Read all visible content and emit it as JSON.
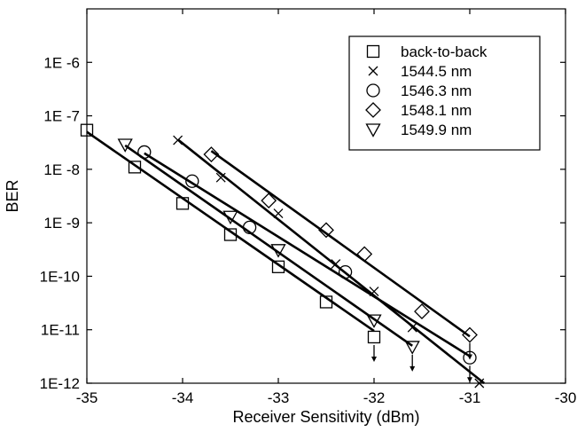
{
  "chart_data": {
    "type": "scatter",
    "title": "",
    "xlabel": "Receiver Sensitivity (dBm)",
    "ylabel": "BER",
    "xlim": [
      -35,
      -30
    ],
    "ylim_log10": [
      -12,
      -5
    ],
    "y_scale": "log",
    "grid": false,
    "legend_position": "top-right",
    "x_ticks": [
      {
        "value": -35,
        "label": "-35"
      },
      {
        "value": -34,
        "label": "-34"
      },
      {
        "value": -33,
        "label": "-33"
      },
      {
        "value": -32,
        "label": "-32"
      },
      {
        "value": -31,
        "label": "-31"
      },
      {
        "value": -30,
        "label": "-30"
      }
    ],
    "y_ticks": [
      {
        "value": 1e-12,
        "label": "1E-12"
      },
      {
        "value": 1e-11,
        "label": "1E-11"
      },
      {
        "value": 1e-10,
        "label": "1E-10"
      },
      {
        "value": 1e-09,
        "label": "1E -9"
      },
      {
        "value": 1e-08,
        "label": "1E -8"
      },
      {
        "value": 1e-07,
        "label": "1E -7"
      },
      {
        "value": 1e-06,
        "label": "1E -6"
      }
    ],
    "series": [
      {
        "name": "back-to-back",
        "marker": "square",
        "points": [
          [
            -35.0,
            5.4e-08
          ],
          [
            -34.5,
            1.1e-08
          ],
          [
            -34.0,
            2.3e-09
          ],
          [
            -33.5,
            6e-10
          ],
          [
            -33.0,
            1.5e-10
          ],
          [
            -32.5,
            3.3e-11
          ],
          [
            -32.0,
            7.3e-12
          ]
        ],
        "fit": [
          [
            -35.0,
            5e-08
          ],
          [
            -32.0,
            9.5e-12
          ]
        ],
        "error_free_arrow_at_x": -32.0
      },
      {
        "name": "1544.5 nm",
        "marker": "x",
        "points": [
          [
            -34.05,
            3.5e-08
          ],
          [
            -33.6,
            7e-09
          ],
          [
            -33.0,
            1.5e-09
          ],
          [
            -32.4,
            1.7e-10
          ],
          [
            -32.0,
            5.2e-11
          ],
          [
            -31.6,
            1.1e-11
          ],
          [
            -30.9,
            1e-12
          ]
        ],
        "fit": [
          [
            -34.05,
            3.6e-08
          ],
          [
            -30.85,
            1e-12
          ]
        ],
        "error_free_arrow_at_x": null
      },
      {
        "name": "1546.3 nm",
        "marker": "circle",
        "points": [
          [
            -34.4,
            2.1e-08
          ],
          [
            -33.9,
            6e-09
          ],
          [
            -33.3,
            8.2e-10
          ],
          [
            -32.3,
            1.2e-10
          ],
          [
            -31.0,
            3e-12
          ]
        ],
        "fit": [
          [
            -34.4,
            2e-08
          ],
          [
            -31.0,
            3.2e-12
          ]
        ],
        "error_free_arrow_at_x": -31.0
      },
      {
        "name": "1548.1 nm",
        "marker": "diamond",
        "points": [
          [
            -33.7,
            1.9e-08
          ],
          [
            -33.1,
            2.6e-09
          ],
          [
            -32.5,
            7.3e-10
          ],
          [
            -32.1,
            2.6e-10
          ],
          [
            -31.5,
            2.2e-11
          ],
          [
            -31.0,
            8e-12
          ]
        ],
        "fit": [
          [
            -33.7,
            2.2e-08
          ],
          [
            -31.0,
            7.5e-12
          ]
        ],
        "error_free_arrow_at_x": -31.0
      },
      {
        "name": "1549.9 nm",
        "marker": "triangle-down",
        "points": [
          [
            -34.6,
            2.9e-08
          ],
          [
            -33.5,
            1.3e-09
          ],
          [
            -33.0,
            3.1e-10
          ],
          [
            -32.0,
            1.5e-11
          ],
          [
            -31.6,
            4.8e-12
          ]
        ],
        "fit": [
          [
            -34.6,
            2.8e-08
          ],
          [
            -31.6,
            5e-12
          ]
        ],
        "error_free_arrow_at_x": -31.6
      }
    ]
  }
}
